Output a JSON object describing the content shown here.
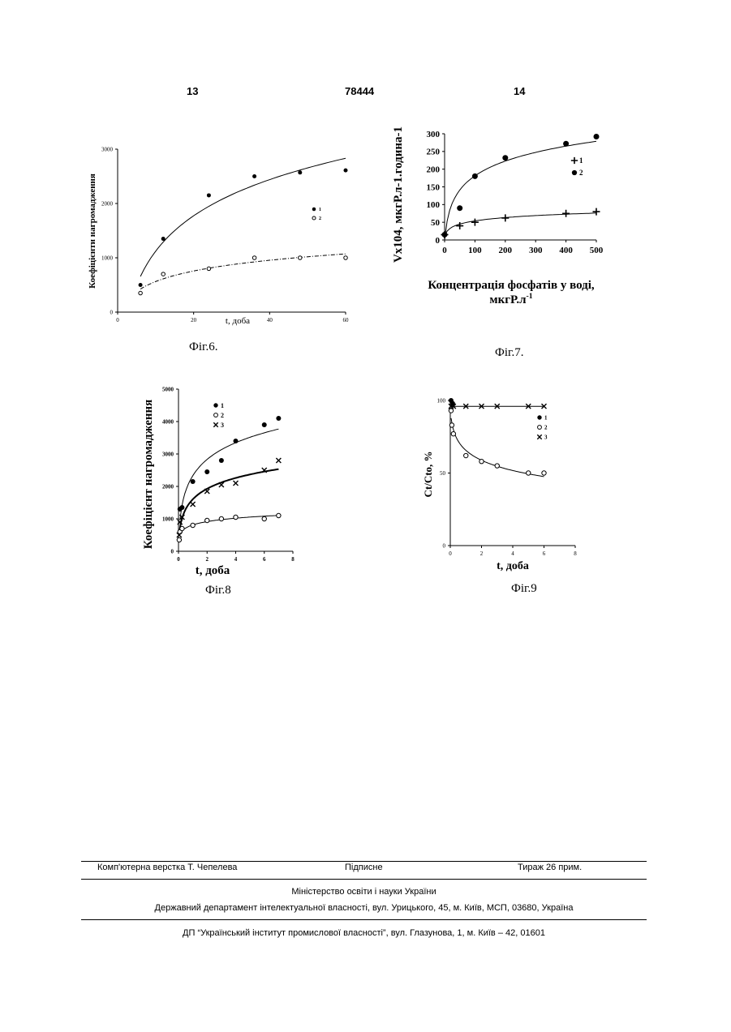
{
  "header": {
    "page_left": "13",
    "patent_number": "78444",
    "page_right": "14"
  },
  "figures": {
    "fig6": {
      "caption": "Фіг.6."
    },
    "fig7": {
      "caption": "Фіг.7."
    },
    "fig8": {
      "caption": "Фіг.8"
    },
    "fig9": {
      "caption": "Фіг.9"
    }
  },
  "chart_data": [
    {
      "id": "fig6",
      "type": "scatter",
      "xlabel": "t, доба",
      "ylabel": "Коефіцієнти нагромадження",
      "xlim": [
        0,
        60
      ],
      "ylim": [
        0,
        3000
      ],
      "x_ticks": [
        0,
        20,
        40,
        60
      ],
      "y_ticks": [
        0,
        1000,
        2000,
        3000
      ],
      "series": [
        {
          "name": "1",
          "marker": "filled-circle",
          "x": [
            6,
            12,
            24,
            36,
            48,
            60
          ],
          "y": [
            500,
            1350,
            2150,
            2500,
            2570,
            2610
          ]
        },
        {
          "name": "2",
          "marker": "open-circle",
          "x": [
            6,
            12,
            24,
            36,
            48,
            60
          ],
          "y": [
            350,
            700,
            800,
            1000,
            1000,
            1000
          ]
        }
      ]
    },
    {
      "id": "fig7",
      "type": "scatter",
      "xlabel": "Концентрація фосфатів у воді, мкгР.л-1",
      "ylabel": "Vx104, мкгР.л-1.година-1",
      "xlim": [
        0,
        500
      ],
      "ylim": [
        0,
        300
      ],
      "x_ticks": [
        0,
        100,
        200,
        300,
        400,
        500
      ],
      "y_ticks": [
        0,
        50,
        100,
        150,
        200,
        250,
        300
      ],
      "series": [
        {
          "name": "1",
          "marker": "plus",
          "x": [
            0,
            50,
            100,
            200,
            400,
            500
          ],
          "y": [
            15,
            40,
            50,
            62,
            75,
            80
          ]
        },
        {
          "name": "2",
          "marker": "filled-circle",
          "x": [
            0,
            50,
            100,
            200,
            400,
            500
          ],
          "y": [
            15,
            90,
            180,
            232,
            272,
            292
          ]
        }
      ]
    },
    {
      "id": "fig8",
      "type": "scatter",
      "xlabel": "t, доба",
      "ylabel": "Коефіцієнт нагромадження",
      "xlim": [
        0,
        8
      ],
      "ylim": [
        0,
        5000
      ],
      "x_ticks": [
        0,
        2,
        4,
        6,
        8
      ],
      "y_ticks": [
        0,
        1000,
        2000,
        3000,
        4000,
        5000
      ],
      "series": [
        {
          "name": "1",
          "marker": "filled-circle",
          "x": [
            0.1,
            0.25,
            1,
            2,
            3,
            4,
            6,
            7
          ],
          "y": [
            1300,
            1350,
            2150,
            2450,
            2800,
            3400,
            3900,
            4100
          ]
        },
        {
          "name": "2",
          "marker": "open-circle",
          "x": [
            0.05,
            0.1,
            0.25,
            1,
            2,
            3,
            4,
            6,
            7
          ],
          "y": [
            350,
            600,
            700,
            800,
            950,
            1000,
            1050,
            1000,
            1100
          ]
        },
        {
          "name": "3",
          "marker": "cross",
          "x": [
            0.05,
            0.1,
            0.25,
            1,
            2,
            3,
            4,
            6,
            7
          ],
          "y": [
            500,
            900,
            1050,
            1450,
            1850,
            2050,
            2100,
            2500,
            2800
          ]
        }
      ]
    },
    {
      "id": "fig9",
      "type": "scatter",
      "xlabel": "t, доба",
      "ylabel": "Сt/Сto, %",
      "xlim": [
        0,
        8
      ],
      "ylim": [
        0,
        100
      ],
      "x_ticks": [
        0,
        2,
        4,
        6,
        8
      ],
      "y_ticks": [
        0,
        50,
        100
      ],
      "series": [
        {
          "name": "1",
          "marker": "filled-circle",
          "x": [
            0.05,
            0.15
          ],
          "y": [
            100,
            98
          ]
        },
        {
          "name": "2",
          "marker": "open-circle",
          "x": [
            0.05,
            0.1,
            0.2,
            1,
            2,
            3,
            5,
            6
          ],
          "y": [
            93,
            83,
            77,
            62,
            58,
            55,
            50,
            50
          ]
        },
        {
          "name": "3",
          "marker": "cross",
          "x": [
            0.05,
            0.2,
            1,
            2,
            3,
            5,
            6
          ],
          "y": [
            96,
            96,
            96,
            96,
            96,
            96,
            96
          ]
        }
      ]
    }
  ],
  "footer": {
    "row1": {
      "left": "Комп'ютерна верстка Т. Чепелева",
      "middle": "Підписне",
      "right": "Тираж 26 прим."
    },
    "ministry": "Міністерство освіти і науки України",
    "department": "Державний департамент інтелектуальної власності, вул. Урицького, 45, м. Київ, МСП, 03680, Україна",
    "institute": "ДП “Український інститут промислової власності”, вул. Глазунова, 1, м. Київ – 42, 01601"
  }
}
